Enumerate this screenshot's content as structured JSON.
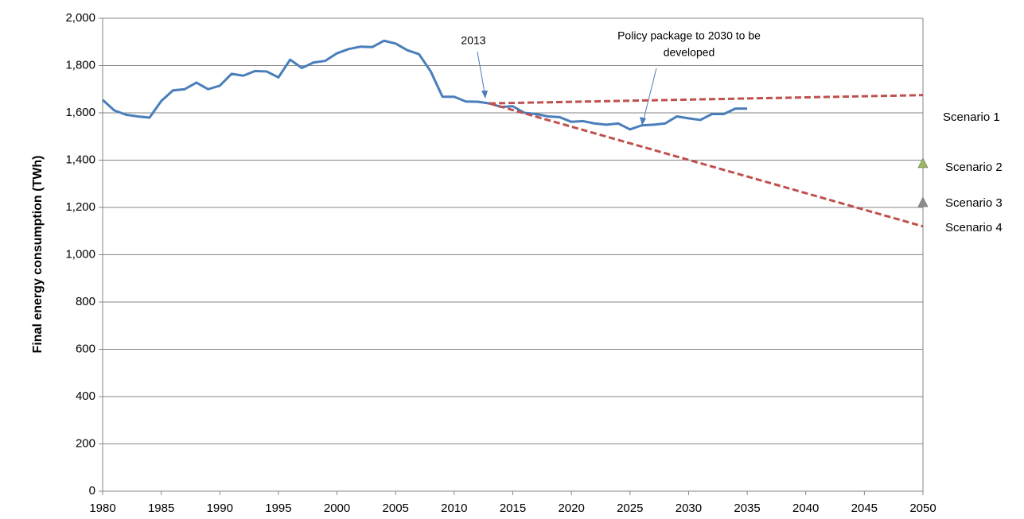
{
  "chart_data": {
    "type": "line",
    "ylabel": "Final energy consumption (TWh)",
    "xlim": [
      1980,
      2050
    ],
    "xticks": [
      1980,
      1985,
      1990,
      1995,
      2000,
      2005,
      2010,
      2015,
      2020,
      2025,
      2030,
      2035,
      2040,
      2045,
      2050
    ],
    "ylim": [
      0,
      2000
    ],
    "yticks": [
      0,
      200,
      400,
      600,
      800,
      {
        "value": 1000,
        "label": "1,000"
      },
      {
        "value": 1200,
        "label": "1,200"
      },
      {
        "value": 1400,
        "label": "1,400"
      },
      {
        "value": 1600,
        "label": "1,600"
      },
      {
        "value": 1800,
        "label": "1,800"
      },
      {
        "value": 2000,
        "label": "2,000"
      }
    ],
    "grid": true,
    "series": [
      {
        "color": "#4a7ebb",
        "style": "solid",
        "x": [
          1980,
          1981,
          1982,
          1983,
          1984,
          1985,
          1986,
          1987,
          1988,
          1989,
          1990,
          1991,
          1992,
          1993,
          1994,
          1995,
          1996,
          1997,
          1998,
          1999,
          2000,
          2001,
          2002,
          2003,
          2004,
          2005,
          2006,
          2007,
          2008,
          2009,
          2010,
          2011,
          2012,
          2013,
          2014,
          2015,
          2016,
          2017,
          2018,
          2019,
          2020,
          2021,
          2022,
          2023,
          2024,
          2025,
          2026,
          2027,
          2028,
          2029,
          2030,
          2031,
          2032,
          2033,
          2034,
          2035
        ],
        "values": [
          1655,
          1610,
          1592,
          1585,
          1580,
          1650,
          1695,
          1700,
          1728,
          1700,
          1715,
          1765,
          1757,
          1777,
          1775,
          1750,
          1825,
          1790,
          1813,
          1820,
          1852,
          1870,
          1880,
          1878,
          1905,
          1893,
          1865,
          1848,
          1775,
          1668,
          1668,
          1648,
          1647,
          1640,
          1625,
          1628,
          1600,
          1595,
          1585,
          1582,
          1562,
          1565,
          1555,
          1550,
          1555,
          1530,
          1547,
          1550,
          1555,
          1585,
          1577,
          1570,
          1595,
          1595,
          1618,
          1618
        ]
      },
      {
        "name": "Scenario 1",
        "color": "#c0504d",
        "style": "dashed",
        "x": [
          2013,
          2050
        ],
        "values": [
          1640,
          1675
        ]
      },
      {
        "name": "Scenario 2",
        "color": "#9bbb59",
        "style": "marker",
        "x": [
          2050
        ],
        "values": [
          1385
        ]
      },
      {
        "name": "Scenario 3",
        "color": "#8c8c8c",
        "style": "marker",
        "x": [
          2050
        ],
        "values": [
          1220
        ]
      },
      {
        "name": "Scenario 4",
        "color": "#c0504d",
        "style": "dashed",
        "x": [
          2013,
          2050
        ],
        "values": [
          1640,
          1120
        ]
      }
    ],
    "annotations": [
      {
        "lines": [
          "2013"
        ]
      },
      {
        "lines": [
          "Policy package to 2030 to be",
          "developed"
        ]
      }
    ]
  }
}
